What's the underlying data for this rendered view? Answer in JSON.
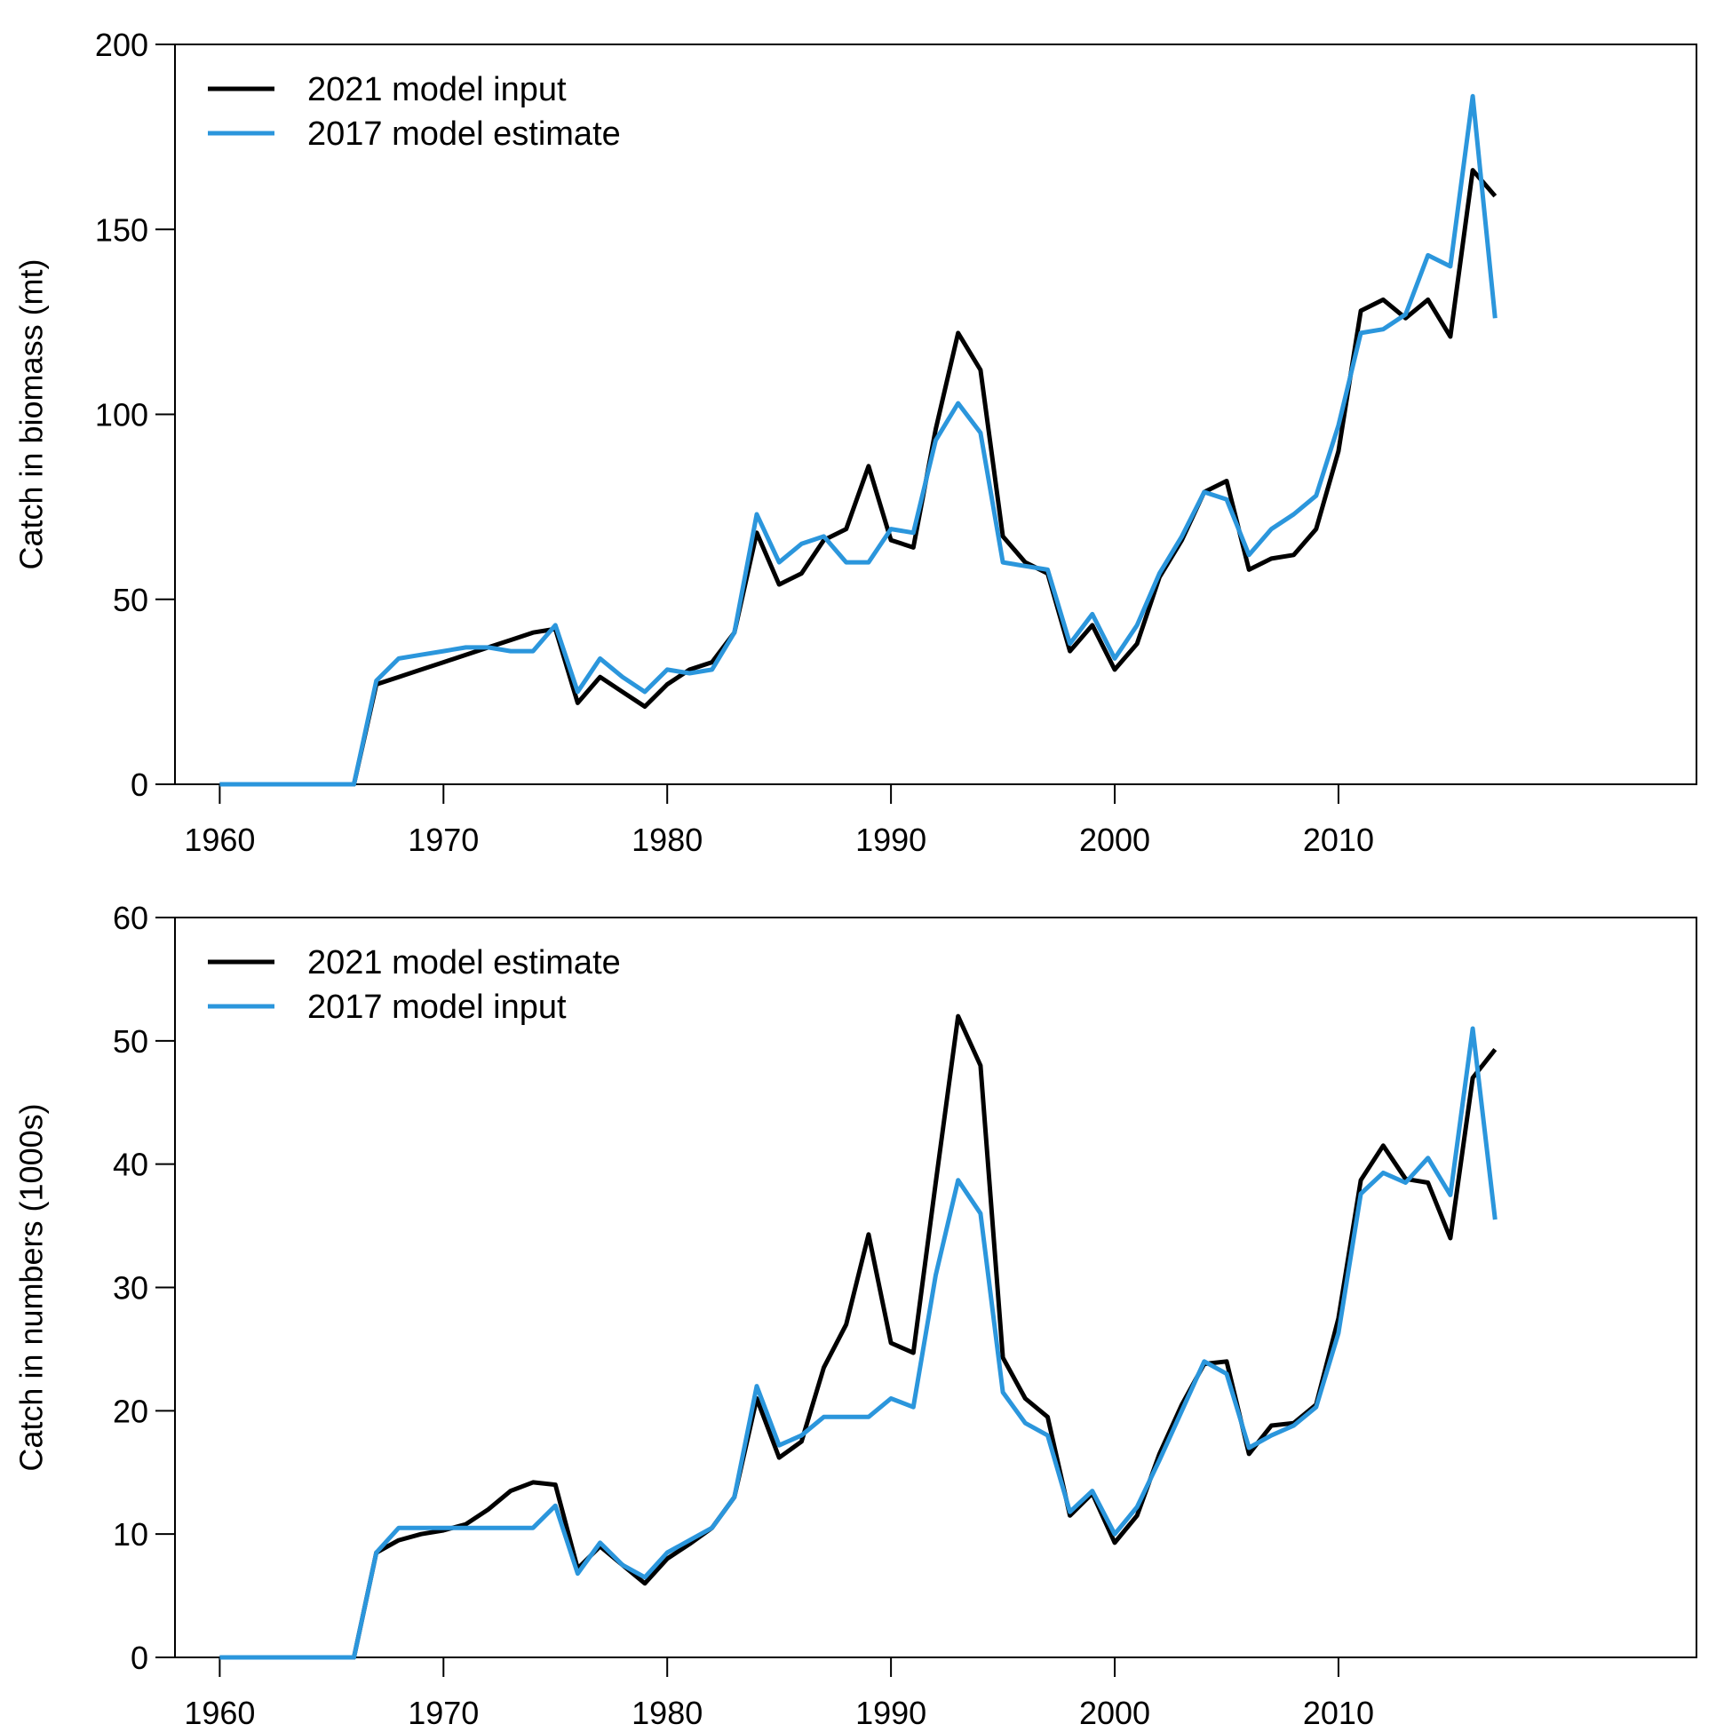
{
  "colors": {
    "black_series": "#000000",
    "blue_series": "#2b96dc"
  },
  "chart_data": [
    {
      "type": "line",
      "title": "",
      "xlabel": "",
      "ylabel": "Catch in biomass (mt)",
      "xlim": [
        1958,
        2026
      ],
      "ylim": [
        0,
        200
      ],
      "xticks": [
        1960,
        1970,
        1980,
        1990,
        2000,
        2010
      ],
      "yticks": [
        0,
        50,
        100,
        150,
        200
      ],
      "grid": false,
      "legend_position": "top-left",
      "x": [
        1960,
        1961,
        1962,
        1963,
        1964,
        1965,
        1966,
        1967,
        1968,
        1969,
        1970,
        1971,
        1972,
        1973,
        1974,
        1975,
        1976,
        1977,
        1978,
        1979,
        1980,
        1981,
        1982,
        1983,
        1984,
        1985,
        1986,
        1987,
        1988,
        1989,
        1990,
        1991,
        1992,
        1993,
        1994,
        1995,
        1996,
        1997,
        1998,
        1999,
        2000,
        2001,
        2002,
        2003,
        2004,
        2005,
        2006,
        2007,
        2008,
        2009,
        2010,
        2011,
        2012,
        2013,
        2014,
        2015,
        2016,
        2017
      ],
      "series": [
        {
          "name": "2021 model input",
          "color": "#000000",
          "values": [
            0,
            0,
            0,
            0,
            0,
            0,
            0,
            27,
            29,
            31,
            33,
            35,
            37,
            39,
            41,
            42,
            22,
            29,
            25,
            21,
            27,
            31,
            33,
            41,
            68,
            54,
            57,
            66,
            69,
            86,
            66,
            64,
            96,
            122,
            112,
            67,
            60,
            57,
            36,
            43,
            31,
            38,
            56,
            66,
            79,
            82,
            58,
            61,
            62,
            69,
            90,
            128,
            131,
            126,
            131,
            121,
            166,
            159
          ]
        },
        {
          "name": "2017 model estimate",
          "color": "#2b96dc",
          "values": [
            0,
            0,
            0,
            0,
            0,
            0,
            0,
            28,
            34,
            35,
            36,
            37,
            37,
            36,
            36,
            43,
            25,
            34,
            29,
            25,
            31,
            30,
            31,
            41,
            73,
            60,
            65,
            67,
            60,
            60,
            69,
            68,
            93,
            103,
            95,
            60,
            59,
            58,
            38,
            46,
            34,
            43,
            57,
            67,
            79,
            77,
            62,
            69,
            73,
            78,
            97,
            122,
            123,
            127,
            143,
            140,
            186,
            126
          ]
        }
      ]
    },
    {
      "type": "line",
      "title": "",
      "xlabel": "",
      "ylabel": "Catch in numbers (1000s)",
      "xlim": [
        1958,
        2026
      ],
      "ylim": [
        0,
        60
      ],
      "xticks": [
        1960,
        1970,
        1980,
        1990,
        2000,
        2010
      ],
      "yticks": [
        0,
        10,
        20,
        30,
        40,
        50,
        60
      ],
      "grid": false,
      "legend_position": "top-left",
      "x": [
        1960,
        1961,
        1962,
        1963,
        1964,
        1965,
        1966,
        1967,
        1968,
        1969,
        1970,
        1971,
        1972,
        1973,
        1974,
        1975,
        1976,
        1977,
        1978,
        1979,
        1980,
        1981,
        1982,
        1983,
        1984,
        1985,
        1986,
        1987,
        1988,
        1989,
        1990,
        1991,
        1992,
        1993,
        1994,
        1995,
        1996,
        1997,
        1998,
        1999,
        2000,
        2001,
        2002,
        2003,
        2004,
        2005,
        2006,
        2007,
        2008,
        2009,
        2010,
        2011,
        2012,
        2013,
        2014,
        2015,
        2016,
        2017
      ],
      "series": [
        {
          "name": "2021 model estimate",
          "color": "#000000",
          "values": [
            0,
            0,
            0,
            0,
            0,
            0,
            0,
            8.5,
            9.5,
            10,
            10.3,
            10.8,
            12,
            13.5,
            14.2,
            14,
            7.2,
            9,
            7.5,
            6,
            8,
            9.2,
            10.5,
            13,
            21,
            16.2,
            17.5,
            23.5,
            27,
            34.3,
            25.5,
            24.7,
            38.5,
            52,
            48,
            24.3,
            21,
            19.5,
            11.5,
            13.3,
            9.3,
            11.5,
            16.5,
            20.5,
            23.8,
            24,
            16.5,
            18.8,
            19,
            20.5,
            27.5,
            38.7,
            41.5,
            38.8,
            38.5,
            34,
            47,
            49.3
          ]
        },
        {
          "name": "2017 model input",
          "color": "#2b96dc",
          "values": [
            0,
            0,
            0,
            0,
            0,
            0,
            0,
            8.5,
            10.5,
            10.5,
            10.5,
            10.5,
            10.5,
            10.5,
            10.5,
            12.3,
            6.8,
            9.3,
            7.5,
            6.5,
            8.5,
            9.5,
            10.5,
            13,
            22,
            17.2,
            18,
            19.5,
            19.5,
            19.5,
            21,
            20.3,
            31,
            38.7,
            36,
            21.5,
            19,
            18,
            11.8,
            13.5,
            10,
            12.2,
            16,
            20,
            24,
            23,
            17,
            18,
            18.8,
            20.3,
            26.3,
            37.6,
            39.3,
            38.5,
            40.5,
            37.5,
            51,
            35.5
          ]
        }
      ]
    }
  ]
}
